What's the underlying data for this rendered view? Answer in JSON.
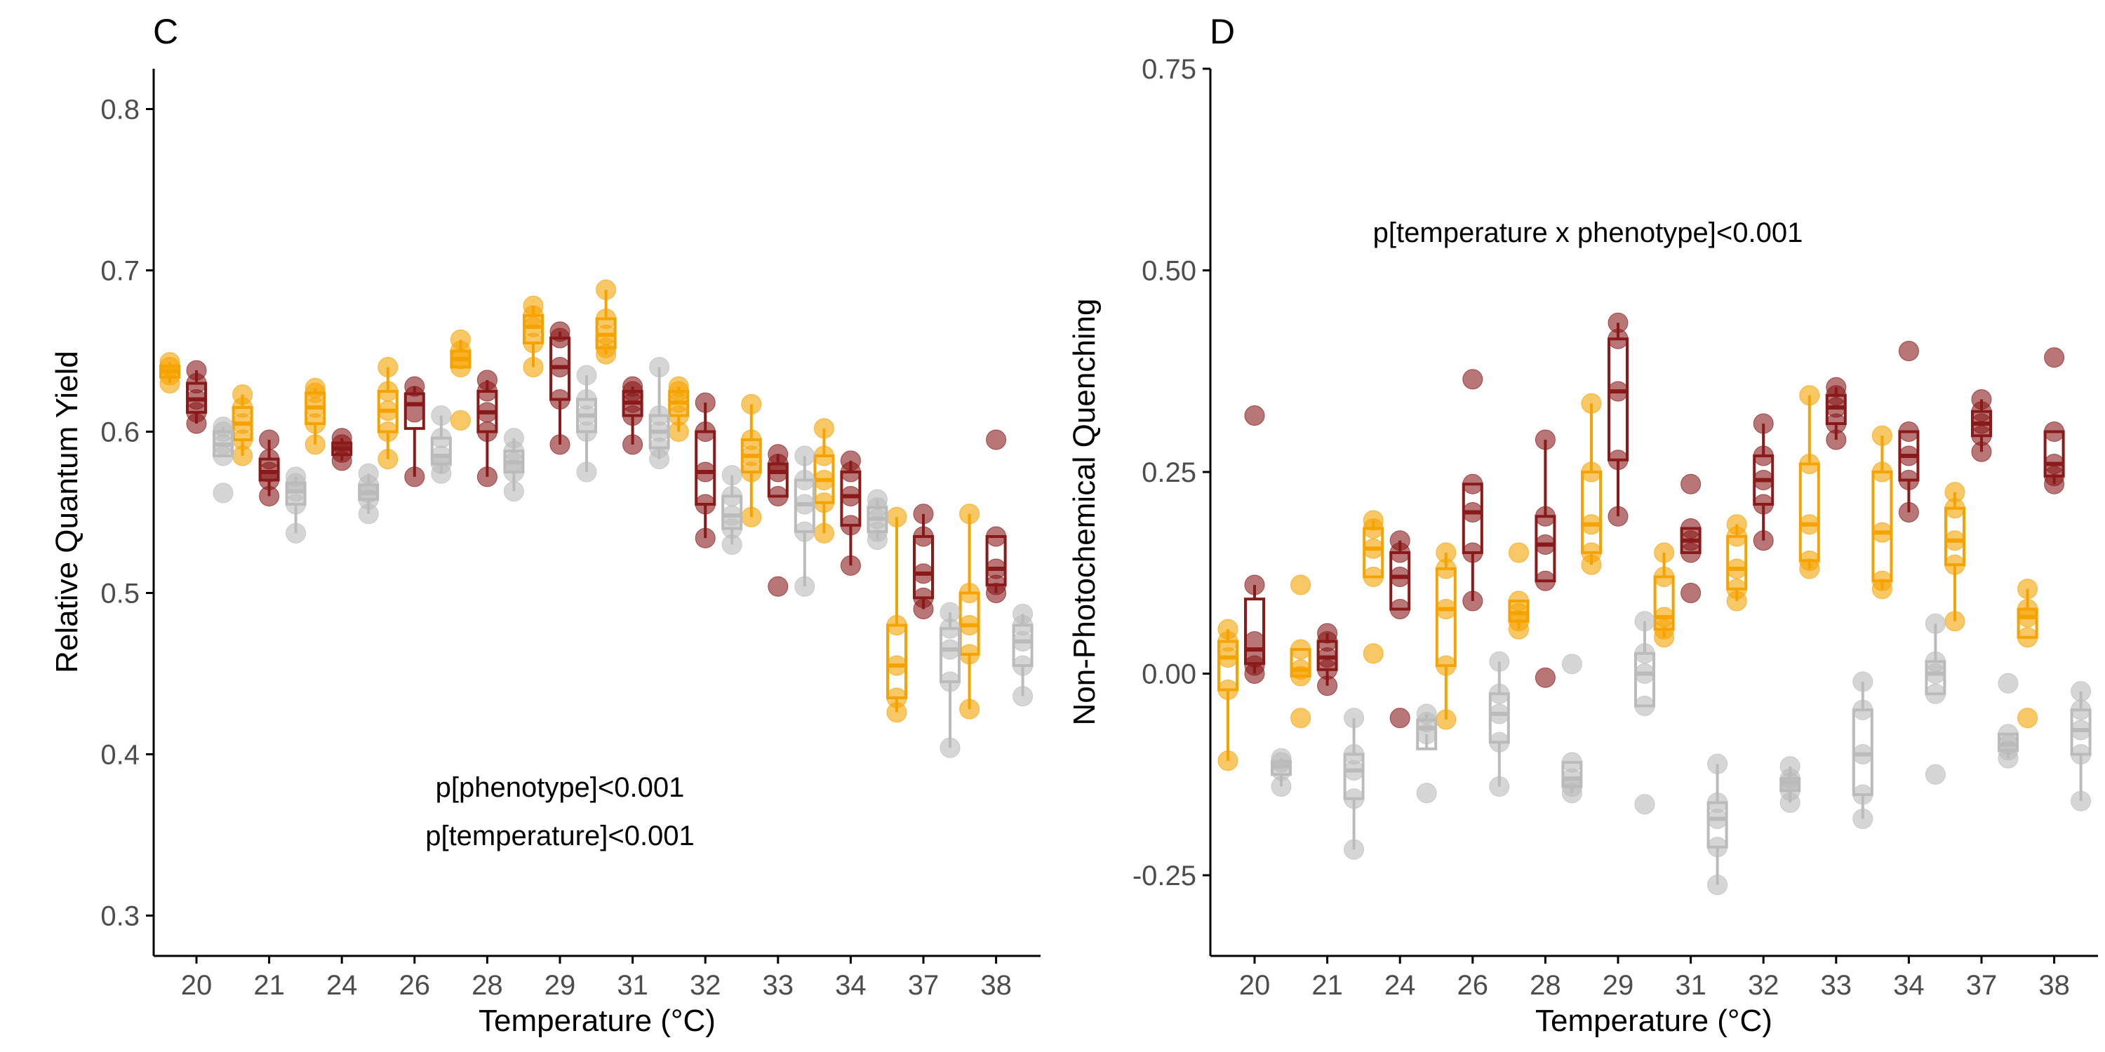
{
  "chart_data": [
    {
      "type": "box",
      "panel": "C",
      "xlabel": "Temperature (°C)",
      "ylabel": "Relative Quantum Yield",
      "ylim": [
        0.275,
        0.825
      ],
      "yticks": [
        0.3,
        0.4,
        0.5,
        0.6,
        0.7,
        0.8
      ],
      "ytick_labels": [
        "0.3",
        "0.4",
        "0.5",
        "0.6",
        "0.7",
        "0.8"
      ],
      "categories": [
        "20",
        "21",
        "24",
        "26",
        "28",
        "29",
        "31",
        "32",
        "33",
        "34",
        "37",
        "38"
      ],
      "annotations": [
        "p[phenotype]<0.001",
        "p[temperature]<0.001"
      ],
      "series": [
        {
          "color": "#F5A300",
          "points": [
            [
              0.63,
              0.635,
              0.64,
              0.643
            ],
            [
              0.585,
              0.595,
              0.605,
              0.615,
              0.623
            ],
            [
              0.592,
              0.605,
              0.615,
              0.624,
              0.627
            ],
            [
              0.583,
              0.6,
              0.613,
              0.625,
              0.64
            ],
            [
              0.607,
              0.64,
              0.645,
              0.65,
              0.657
            ],
            [
              0.64,
              0.655,
              0.665,
              0.672,
              0.678
            ],
            [
              0.648,
              0.652,
              0.66,
              0.67,
              0.688
            ],
            [
              0.6,
              0.61,
              0.618,
              0.625,
              0.628
            ],
            [
              0.547,
              0.575,
              0.585,
              0.595,
              0.617
            ],
            [
              0.537,
              0.556,
              0.57,
              0.585,
              0.602
            ],
            [
              0.426,
              0.435,
              0.455,
              0.48,
              0.547
            ],
            [
              0.428,
              0.462,
              0.48,
              0.5,
              0.549
            ]
          ]
        },
        {
          "color": "#8B1A1A",
          "points": [
            [
              0.605,
              0.612,
              0.62,
              0.63,
              0.638
            ],
            [
              0.56,
              0.57,
              0.575,
              0.583,
              0.595
            ],
            [
              0.582,
              0.587,
              0.592,
              0.596
            ],
            [
              0.572,
              0.612,
              0.622,
              0.628
            ],
            [
              0.572,
              0.6,
              0.612,
              0.625,
              0.632
            ],
            [
              0.592,
              0.62,
              0.64,
              0.658,
              0.662
            ],
            [
              0.592,
              0.61,
              0.618,
              0.625,
              0.628
            ],
            [
              0.534,
              0.555,
              0.575,
              0.6,
              0.618
            ],
            [
              0.504,
              0.56,
              0.575,
              0.58,
              0.586
            ],
            [
              0.517,
              0.542,
              0.56,
              0.575,
              0.582
            ],
            [
              0.49,
              0.497,
              0.512,
              0.535,
              0.549
            ],
            [
              0.5,
              0.505,
              0.515,
              0.535,
              0.595
            ]
          ]
        },
        {
          "color": "#BBBBBB",
          "points": [
            [
              0.562,
              0.585,
              0.592,
              0.6,
              0.603
            ],
            [
              0.537,
              0.555,
              0.563,
              0.568,
              0.572
            ],
            [
              0.549,
              0.558,
              0.562,
              0.567,
              0.574
            ],
            [
              0.574,
              0.58,
              0.585,
              0.596,
              0.61
            ],
            [
              0.563,
              0.575,
              0.581,
              0.588,
              0.596
            ],
            [
              0.575,
              0.6,
              0.61,
              0.62,
              0.635
            ],
            [
              0.583,
              0.59,
              0.6,
              0.61,
              0.64
            ],
            [
              0.53,
              0.54,
              0.548,
              0.56,
              0.573
            ],
            [
              0.504,
              0.538,
              0.555,
              0.57,
              0.585
            ],
            [
              0.533,
              0.538,
              0.546,
              0.553,
              0.558
            ],
            [
              0.404,
              0.445,
              0.465,
              0.478,
              0.488
            ],
            [
              0.436,
              0.455,
              0.47,
              0.48,
              0.487
            ]
          ]
        }
      ]
    },
    {
      "type": "box",
      "panel": "D",
      "xlabel": "Temperature (°C)",
      "ylabel": "Non-Photochemical Quenching",
      "ylim": [
        -0.35,
        0.75
      ],
      "yticks": [
        -0.25,
        0.0,
        0.25,
        0.5,
        0.75
      ],
      "ytick_labels": [
        "-0.25",
        "0.00",
        "0.25",
        "0.50",
        "0.75"
      ],
      "categories": [
        "20",
        "21",
        "24",
        "26",
        "28",
        "29",
        "31",
        "32",
        "33",
        "34",
        "37",
        "38"
      ],
      "annotations": [
        "p[temperature x phenotype]<0.001"
      ],
      "series": [
        {
          "color": "#F5A300",
          "points": [
            [
              -0.108,
              -0.02,
              0.02,
              0.04,
              0.055
            ],
            [
              -0.055,
              -0.003,
              0.005,
              0.03,
              0.11
            ],
            [
              0.025,
              0.12,
              0.155,
              0.18,
              0.19
            ],
            [
              -0.057,
              0.01,
              0.08,
              0.13,
              0.15
            ],
            [
              0.055,
              0.065,
              0.075,
              0.09,
              0.15
            ],
            [
              0.135,
              0.15,
              0.185,
              0.25,
              0.335
            ],
            [
              0.045,
              0.055,
              0.07,
              0.12,
              0.15
            ],
            [
              0.09,
              0.105,
              0.13,
              0.17,
              0.185
            ],
            [
              0.13,
              0.14,
              0.185,
              0.26,
              0.345
            ],
            [
              0.105,
              0.115,
              0.175,
              0.25,
              0.295
            ],
            [
              0.065,
              0.135,
              0.165,
              0.205,
              0.225
            ],
            [
              -0.055,
              0.045,
              0.07,
              0.08,
              0.105
            ]
          ]
        },
        {
          "color": "#8B1A1A",
          "points": [
            [
              0.0,
              0.01,
              0.02,
              0.04,
              0.11,
              0.32
            ],
            [
              -0.015,
              0.005,
              0.02,
              0.04,
              0.05
            ],
            [
              -0.055,
              0.08,
              0.12,
              0.15,
              0.165
            ],
            [
              0.09,
              0.15,
              0.2,
              0.235,
              0.365
            ],
            [
              -0.005,
              0.115,
              0.16,
              0.195,
              0.29
            ],
            [
              0.195,
              0.265,
              0.35,
              0.415,
              0.435
            ],
            [
              0.1,
              0.15,
              0.165,
              0.18,
              0.235
            ],
            [
              0.165,
              0.21,
              0.24,
              0.27,
              0.31
            ],
            [
              0.29,
              0.31,
              0.33,
              0.345,
              0.355
            ],
            [
              0.2,
              0.24,
              0.27,
              0.3,
              0.4
            ],
            [
              0.275,
              0.295,
              0.31,
              0.325,
              0.34
            ],
            [
              0.235,
              0.245,
              0.26,
              0.3,
              0.392
            ]
          ]
        },
        {
          "color": "#BBBBBB",
          "points": [
            [
              -0.14,
              -0.12,
              -0.11,
              -0.105
            ],
            [
              -0.218,
              -0.155,
              -0.12,
              -0.1,
              -0.055
            ],
            [
              -0.148,
              -0.075,
              -0.06,
              -0.05
            ],
            [
              -0.14,
              -0.085,
              -0.05,
              -0.025,
              0.015
            ],
            [
              -0.148,
              -0.14,
              -0.13,
              -0.11,
              0.012
            ],
            [
              -0.162,
              -0.04,
              0.0,
              0.025,
              0.065
            ],
            [
              -0.262,
              -0.215,
              -0.18,
              -0.16,
              -0.112
            ],
            [
              -0.16,
              -0.145,
              -0.135,
              -0.13,
              -0.115
            ],
            [
              -0.18,
              -0.15,
              -0.1,
              -0.045,
              -0.01
            ],
            [
              -0.125,
              -0.025,
              0.0,
              0.015,
              0.062
            ],
            [
              -0.105,
              -0.095,
              -0.088,
              -0.075,
              -0.012
            ],
            [
              -0.158,
              -0.1,
              -0.07,
              -0.045,
              -0.022
            ]
          ]
        }
      ]
    }
  ]
}
